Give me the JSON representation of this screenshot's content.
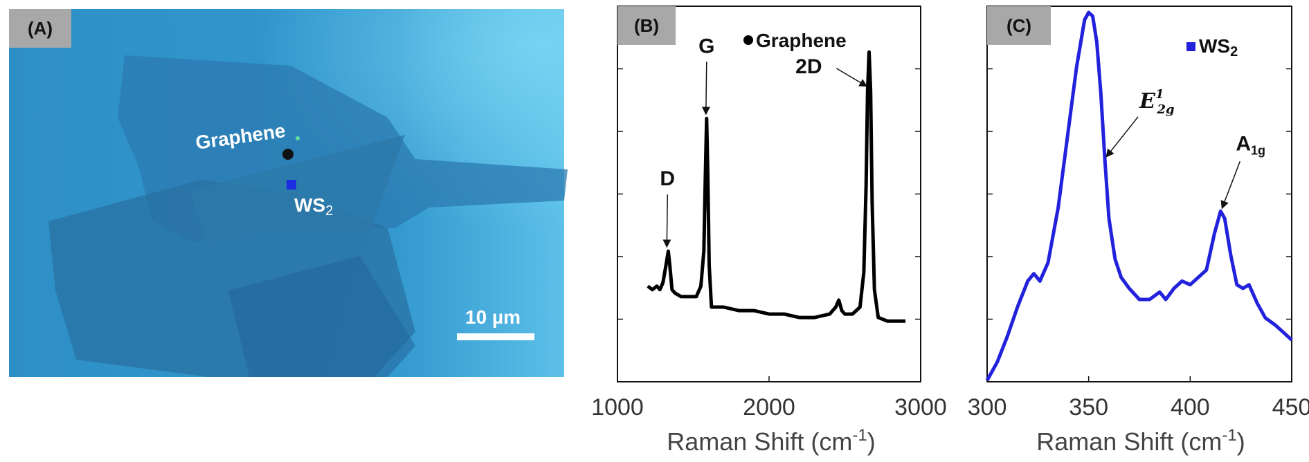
{
  "panel_a": {
    "tag": "(A)",
    "label_graphene": "Graphene",
    "label_ws2_main": "WS",
    "label_ws2_sub": "2",
    "scale_bar_label": "10 µm",
    "colors": {
      "background": "#2f95c9",
      "domain_dark": "#2a6fa0",
      "marker_graphene": "#111111",
      "marker_ws2": "#1a2de0"
    }
  },
  "chart_data": [
    {
      "type": "line",
      "panel": "B",
      "tag": "(B)",
      "xlabel": "Raman Shift (cm",
      "xlabel_sup": "-1",
      "xlabel_close": ")",
      "ylabel": "",
      "xlim": [
        1000,
        3000
      ],
      "ylim": [
        0,
        1
      ],
      "xticks": [
        1000,
        2000,
        3000
      ],
      "xtick_labels": [
        "1000",
        "2000",
        "3000"
      ],
      "legend": {
        "marker": "circle",
        "label": "Graphene",
        "placement": "top"
      },
      "series": [
        {
          "color": "#000000",
          "x": [
            1200,
            1230,
            1260,
            1280,
            1300,
            1320,
            1335,
            1345,
            1360,
            1380,
            1420,
            1470,
            1520,
            1550,
            1570,
            1580,
            1588,
            1596,
            1605,
            1620,
            1650,
            1700,
            1800,
            1900,
            2000,
            2100,
            2200,
            2300,
            2400,
            2440,
            2460,
            2480,
            2500,
            2550,
            2600,
            2625,
            2640,
            2650,
            2660,
            2670,
            2680,
            2695,
            2720,
            2780,
            2850,
            2900
          ],
          "y": [
            0.26,
            0.25,
            0.26,
            0.25,
            0.27,
            0.32,
            0.36,
            0.32,
            0.25,
            0.24,
            0.23,
            0.23,
            0.23,
            0.26,
            0.36,
            0.58,
            0.74,
            0.58,
            0.32,
            0.2,
            0.2,
            0.2,
            0.19,
            0.19,
            0.18,
            0.18,
            0.17,
            0.17,
            0.18,
            0.2,
            0.22,
            0.19,
            0.18,
            0.18,
            0.2,
            0.3,
            0.55,
            0.82,
            0.93,
            0.82,
            0.5,
            0.25,
            0.17,
            0.16,
            0.16,
            0.16
          ]
        }
      ],
      "annotations": [
        {
          "text": "D",
          "x": 1330,
          "y": 0.36
        },
        {
          "text": "G",
          "x": 1588,
          "y": 0.74
        },
        {
          "text": "2D",
          "x": 2650,
          "y": 0.82
        }
      ]
    },
    {
      "type": "line",
      "panel": "C",
      "tag": "(C)",
      "xlabel": "Raman Shift (cm",
      "xlabel_sup": "-1",
      "xlabel_close": ")",
      "ylabel": "",
      "xlim": [
        300,
        450
      ],
      "ylim": [
        0,
        1
      ],
      "xticks": [
        300,
        350,
        400,
        450
      ],
      "xtick_labels": [
        "300",
        "350",
        "400",
        "450"
      ],
      "legend": {
        "marker": "square",
        "label_main": "WS",
        "label_sub": "2",
        "placement": "top-right"
      },
      "series": [
        {
          "color": "#2222dd",
          "x": [
            300,
            305,
            310,
            315,
            320,
            323,
            326,
            330,
            335,
            340,
            344,
            348,
            350,
            352,
            354,
            356,
            358,
            360,
            363,
            366,
            370,
            375,
            380,
            385,
            388,
            392,
            396,
            400,
            404,
            408,
            412,
            415,
            417,
            420,
            423,
            426,
            429,
            433,
            437,
            442,
            446,
            450
          ],
          "y": [
            0.0,
            0.05,
            0.12,
            0.2,
            0.27,
            0.29,
            0.27,
            0.32,
            0.47,
            0.68,
            0.85,
            0.98,
            1.0,
            0.99,
            0.92,
            0.78,
            0.6,
            0.44,
            0.33,
            0.28,
            0.25,
            0.22,
            0.22,
            0.24,
            0.22,
            0.25,
            0.27,
            0.26,
            0.28,
            0.3,
            0.4,
            0.46,
            0.44,
            0.34,
            0.26,
            0.25,
            0.26,
            0.21,
            0.17,
            0.15,
            0.13,
            0.11
          ]
        }
      ],
      "annotations": [
        {
          "text_main": "E",
          "text_sup": "1",
          "text_sub": "2g",
          "x": 358,
          "y": 0.6
        },
        {
          "text_main": "A",
          "text_sub": "1g",
          "x": 415,
          "y": 0.46
        }
      ]
    }
  ]
}
